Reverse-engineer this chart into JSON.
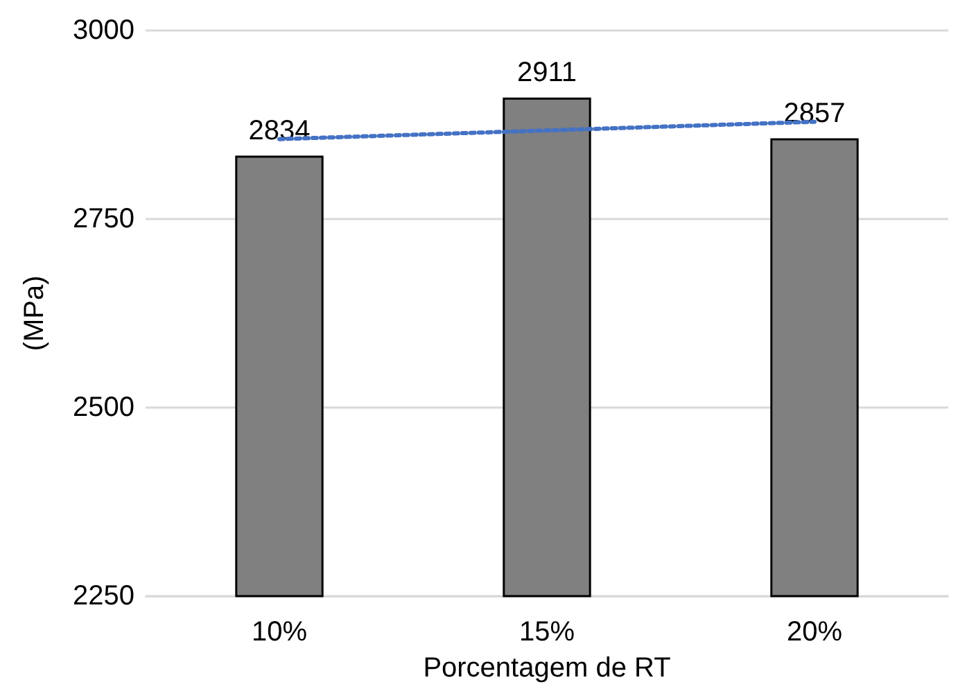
{
  "chart_data": {
    "type": "bar",
    "ylabel": "(MPa)",
    "xlabel": "Porcentagem de RT",
    "categories": [
      "10%",
      "15%",
      "20%"
    ],
    "series": [
      {
        "color": "#808080",
        "values": [
          2834,
          2911,
          2857
        ],
        "value_labels": [
          "2834",
          "2911",
          "2857"
        ]
      },
      {
        "type": "line",
        "color": "#4472c4",
        "x": [
          "10%",
          "20%"
        ],
        "values": [
          2856,
          2879
        ],
        "line_style": "dotted",
        "marker": "none"
      }
    ],
    "ylim": [
      2250,
      3000
    ],
    "yticks": [
      2250,
      2500,
      2750,
      3000
    ],
    "grid": "y"
  }
}
